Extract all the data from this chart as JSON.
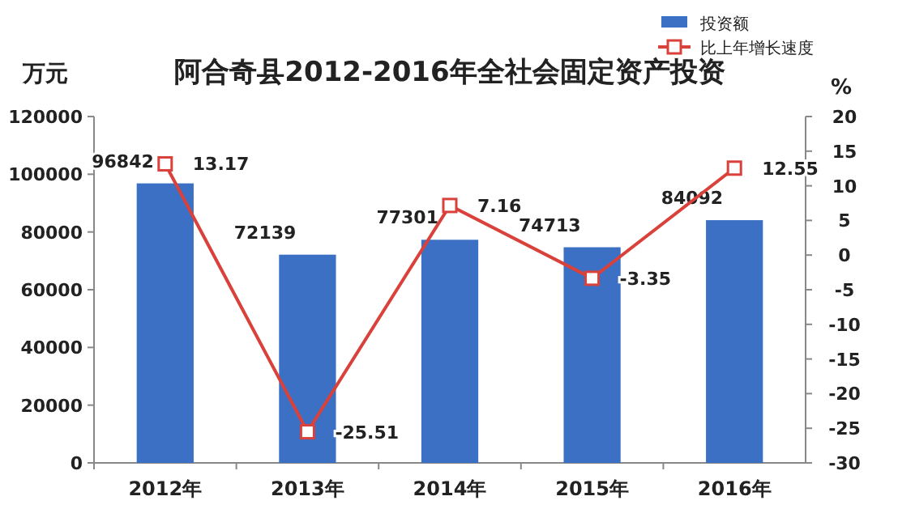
{
  "chart_data": {
    "type": "bar",
    "title": "阿合奇县2012-2016年全社会固定资产投资",
    "ylabel": "万元",
    "y2label": "%",
    "categories": [
      "2012年",
      "2013年",
      "2014年",
      "2015年",
      "2016年"
    ],
    "series": [
      {
        "name": "投资额",
        "color": "#3b70c4",
        "values": [
          96842,
          72139,
          77301,
          74713,
          84092
        ]
      },
      {
        "name": "比上年增长速度",
        "type": "line",
        "axis": "y2",
        "color": "#d9413a",
        "marker": "square",
        "values": [
          13.17,
          -25.51,
          7.16,
          -3.35,
          12.55
        ]
      }
    ],
    "ylim": [
      0,
      120000
    ],
    "yticks": [
      0,
      20000,
      40000,
      60000,
      80000,
      100000,
      120000
    ],
    "y2lim": [
      -30,
      20
    ],
    "y2ticks": [
      -30,
      -25,
      -20,
      -15,
      -10,
      -5,
      0,
      5,
      10,
      15,
      20
    ],
    "data_labels": true,
    "legend": "top right",
    "grid": false
  }
}
